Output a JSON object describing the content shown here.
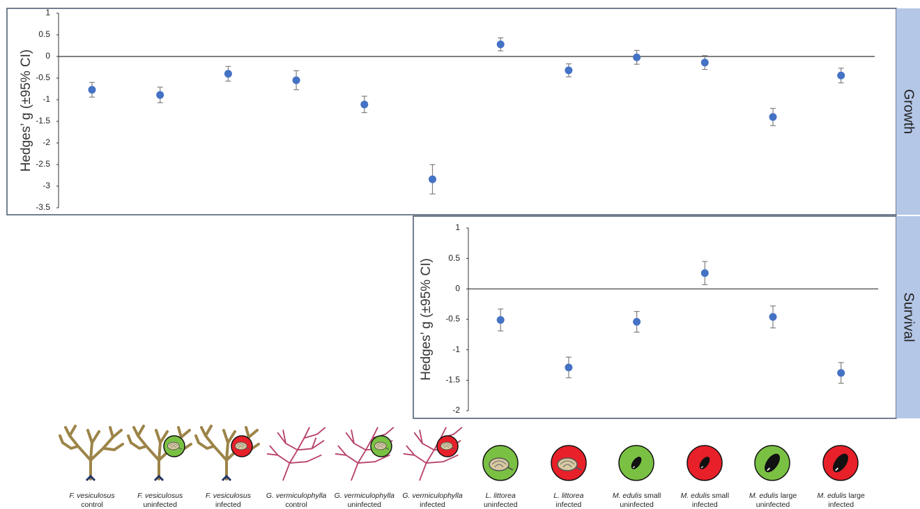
{
  "chart_data": [
    {
      "type": "errorbar",
      "panel_label": "Growth",
      "ylabel": "Hedges’ g (±95% CI)",
      "categories": [
        {
          "species": "F. vesiculosus",
          "status": "control"
        },
        {
          "species": "F. vesiculosus",
          "status": "uninfected"
        },
        {
          "species": "F. vesiculosus",
          "status": "infected"
        },
        {
          "species": "G. vermiculophylla",
          "status": "control"
        },
        {
          "species": "G. vermiculophylla",
          "status": "uninfected"
        },
        {
          "species": "G. vermiculophylla",
          "status": "infected"
        },
        {
          "species": "L. littorea",
          "status": "uninfected"
        },
        {
          "species": "L. littorea",
          "status": "infected"
        },
        {
          "species": "M. edulis",
          "size": "small",
          "status": "uninfected"
        },
        {
          "species": "M. edulis",
          "size": "small",
          "status": "infected"
        },
        {
          "species": "M. edulis",
          "size": "large",
          "status": "uninfected"
        },
        {
          "species": "M. edulis",
          "size": "large",
          "status": "infected"
        }
      ],
      "values": [
        -0.77,
        -0.89,
        -0.4,
        -0.55,
        -1.11,
        -2.84,
        0.28,
        -0.32,
        -0.02,
        -0.14,
        -1.4,
        -0.44
      ],
      "errors": [
        0.17,
        0.18,
        0.17,
        0.22,
        0.19,
        0.34,
        0.15,
        0.15,
        0.16,
        0.16,
        0.2,
        0.17
      ],
      "color": "#4472c4",
      "error_color": "#7f7f7f",
      "ylim": [
        -3.5,
        1
      ],
      "yticks": [
        1,
        0.5,
        0,
        -0.5,
        -1,
        -1.5,
        -2,
        -2.5,
        -3,
        -3.5
      ]
    },
    {
      "type": "errorbar",
      "panel_label": "Survival",
      "ylabel": "Hedges’ g (±95% CI)",
      "values": [
        null,
        null,
        null,
        null,
        null,
        null,
        -0.51,
        -1.29,
        -0.54,
        0.26,
        -0.46,
        -1.38
      ],
      "errors": [
        null,
        null,
        null,
        null,
        null,
        null,
        0.18,
        0.17,
        0.17,
        0.19,
        0.18,
        0.17
      ],
      "color": "#4472c4",
      "error_color": "#7f7f7f",
      "ylim": [
        -2,
        1
      ],
      "yticks": [
        1,
        0.5,
        0,
        -0.5,
        -1,
        -1.5,
        -2
      ]
    }
  ]
}
